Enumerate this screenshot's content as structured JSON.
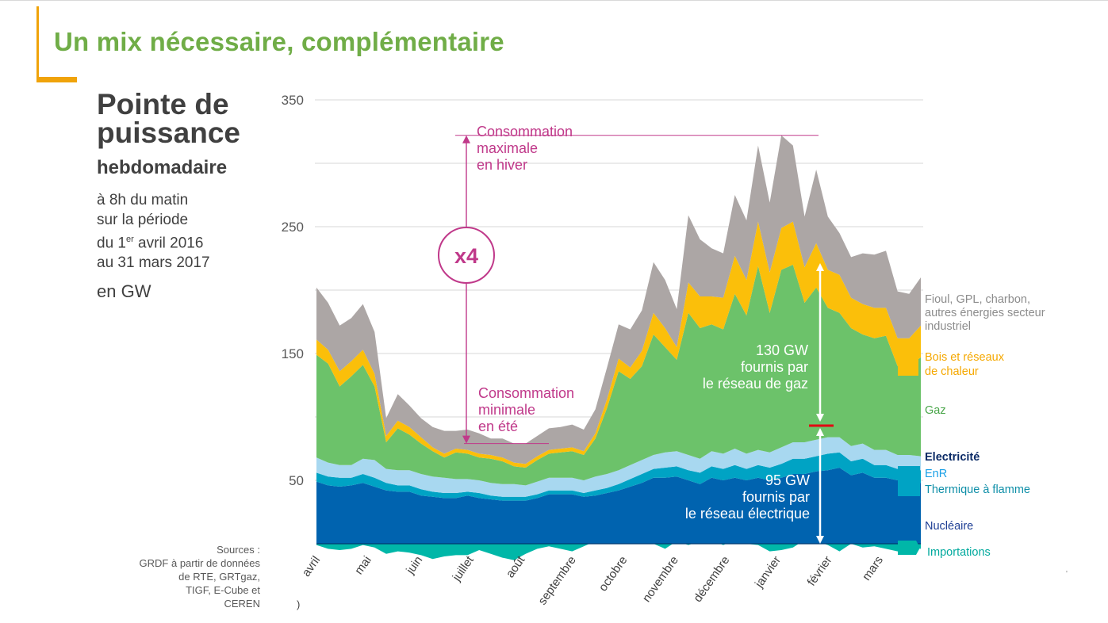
{
  "slide": {
    "title": "Un mix nécessaire, complémentaire",
    "accent_color": "#f0a30a",
    "title_color": "#70ad47"
  },
  "chart_title": {
    "line1": "Pointe de puissance",
    "line2": "hebdomadaire",
    "sub1": "à 8h du matin",
    "sub2": "sur la période",
    "sub3_pre": "du 1",
    "sub3_sup": "er",
    "sub3_post": " avril 2016",
    "sub4": "au 31 mars 2017",
    "unit": "en GW"
  },
  "sources": {
    "line1": "Sources :",
    "line2": "GRDF à partir de données",
    "line3": "de RTE, GRTgaz,",
    "line4": "TIGF, E-Cube et",
    "line5": "CEREN",
    "paren": ")"
  },
  "annotations": {
    "max_line1": "Consommation",
    "max_line2": "maximale",
    "max_line3": "en hiver",
    "min_line1": "Consommation",
    "min_line2": "minimale",
    "min_line3": "en été",
    "ratio": "x4",
    "gas_line1": "130 GW",
    "gas_line2": "fournis par",
    "gas_line3": "le réseau de gaz",
    "elec_line1": "95 GW",
    "elec_line2": "fournis par",
    "elec_line3": "le réseau électrique",
    "annotation_color": "#c0398a"
  },
  "legend": {
    "fioul_line1": "Fioul, GPL, charbon,",
    "fioul_line2": "autres énergies secteur",
    "fioul_line3": "industriel",
    "bois_line1": "Bois et réseaux",
    "bois_line2": "de chaleur",
    "gaz": "Gaz",
    "electricite": "Electricité",
    "enr": "EnR",
    "thermique": "Thermique à flamme",
    "nucleaire": "Nucléaire",
    "importations": "Importations"
  },
  "chart_data": {
    "type": "area",
    "stacked": true,
    "ylim": [
      -15,
      350
    ],
    "yticks": [
      50,
      150,
      250,
      350
    ],
    "grid": true,
    "months": [
      "avril",
      "mai",
      "juin",
      "juillet",
      "août",
      "septembre",
      "octobre",
      "novembre",
      "décembre",
      "janvier",
      "février",
      "mars"
    ],
    "x_weeks": [
      1,
      2,
      3,
      4,
      5,
      6,
      7,
      8,
      9,
      10,
      11,
      12,
      13,
      14,
      15,
      16,
      17,
      18,
      19,
      20,
      21,
      22,
      23,
      24,
      25,
      26,
      27,
      28,
      29,
      30,
      31,
      32,
      33,
      34,
      35,
      36,
      37,
      38,
      39,
      40,
      41,
      42,
      43,
      44,
      45,
      46,
      47,
      48,
      49,
      50,
      51,
      52,
      53
    ],
    "series": [
      {
        "name": "Importations",
        "color": "#00b7a8",
        "values": [
          -1,
          -4,
          -5,
          -4,
          -1,
          -3,
          -8,
          -6,
          -7,
          -9,
          -12,
          -10,
          -9,
          -9,
          -5,
          -8,
          -11,
          -13,
          -8,
          -4,
          -2,
          -4,
          -6,
          -2,
          2,
          4,
          2,
          6,
          3,
          0,
          -4,
          2,
          -1,
          2,
          3,
          -1,
          3,
          0,
          -1,
          -6,
          -5,
          -3,
          3,
          2,
          -1,
          -6,
          0,
          -3,
          -2,
          -4,
          -6,
          -3,
          -4
        ]
      },
      {
        "name": "Nucléaire",
        "color": "#0063af",
        "values": [
          49,
          46,
          45,
          46,
          48,
          45,
          42,
          41,
          41,
          38,
          37,
          36,
          36,
          38,
          36,
          35,
          34,
          34,
          34,
          36,
          39,
          39,
          39,
          37,
          38,
          40,
          42,
          45,
          48,
          52,
          52,
          53,
          50,
          47,
          52,
          50,
          52,
          50,
          52,
          50,
          52,
          55,
          55,
          57,
          58,
          60,
          54,
          56,
          52,
          52,
          50,
          50,
          48
        ]
      },
      {
        "name": "Thermique à flamme",
        "color": "#00a3c4",
        "values": [
          7,
          7,
          7,
          6,
          7,
          7,
          6,
          5,
          5,
          5,
          4,
          4,
          4,
          3,
          4,
          3,
          3,
          3,
          3,
          3,
          3,
          3,
          3,
          3,
          4,
          4,
          5,
          6,
          7,
          7,
          8,
          8,
          8,
          9,
          9,
          9,
          10,
          9,
          10,
          10,
          11,
          12,
          12,
          12,
          13,
          12,
          11,
          11,
          10,
          10,
          9,
          9,
          10
        ]
      },
      {
        "name": "EnR",
        "color": "#a8d8f0",
        "values": [
          12,
          11,
          10,
          10,
          12,
          14,
          11,
          12,
          12,
          12,
          12,
          12,
          11,
          10,
          10,
          10,
          10,
          10,
          9,
          10,
          10,
          10,
          10,
          10,
          11,
          11,
          11,
          11,
          11,
          11,
          12,
          12,
          12,
          11,
          12,
          12,
          13,
          12,
          12,
          12,
          13,
          13,
          13,
          13,
          13,
          12,
          12,
          12,
          12,
          12,
          11,
          11,
          11
        ]
      },
      {
        "name": "Gaz",
        "color": "#6cc26a",
        "values": [
          81,
          78,
          62,
          70,
          74,
          58,
          21,
          33,
          28,
          24,
          20,
          16,
          21,
          20,
          18,
          19,
          18,
          14,
          14,
          17,
          19,
          20,
          21,
          20,
          30,
          52,
          78,
          68,
          74,
          95,
          83,
          72,
          112,
          103,
          100,
          98,
          122,
          109,
          145,
          110,
          140,
          140,
          110,
          120,
          102,
          98,
          93,
          86,
          88,
          90,
          70,
          70,
          78
        ]
      },
      {
        "name": "Bois et réseaux de chaleur",
        "color": "#fbbf0a",
        "values": [
          12,
          11,
          12,
          12,
          12,
          10,
          5,
          6,
          6,
          5,
          3,
          3,
          3,
          3,
          3,
          3,
          3,
          3,
          3,
          3,
          3,
          3,
          3,
          3,
          4,
          7,
          10,
          9,
          12,
          17,
          15,
          10,
          24,
          25,
          22,
          25,
          30,
          28,
          35,
          32,
          33,
          34,
          28,
          35,
          30,
          30,
          24,
          24,
          24,
          22,
          22,
          22,
          25
        ]
      },
      {
        "name": "Fioul, GPL, charbon, autres énergies secteur industriel",
        "color": "#aca6a5",
        "values": [
          41,
          37,
          36,
          34,
          36,
          33,
          14,
          21,
          17,
          15,
          16,
          18,
          14,
          16,
          16,
          13,
          15,
          15,
          16,
          16,
          17,
          17,
          18,
          17,
          19,
          25,
          27,
          30,
          32,
          40,
          38,
          30,
          53,
          45,
          38,
          35,
          48,
          47,
          60,
          55,
          73,
          60,
          40,
          58,
          42,
          33,
          32,
          40,
          42,
          45,
          37,
          35,
          38
        ]
      }
    ],
    "peak_week": 40
  }
}
